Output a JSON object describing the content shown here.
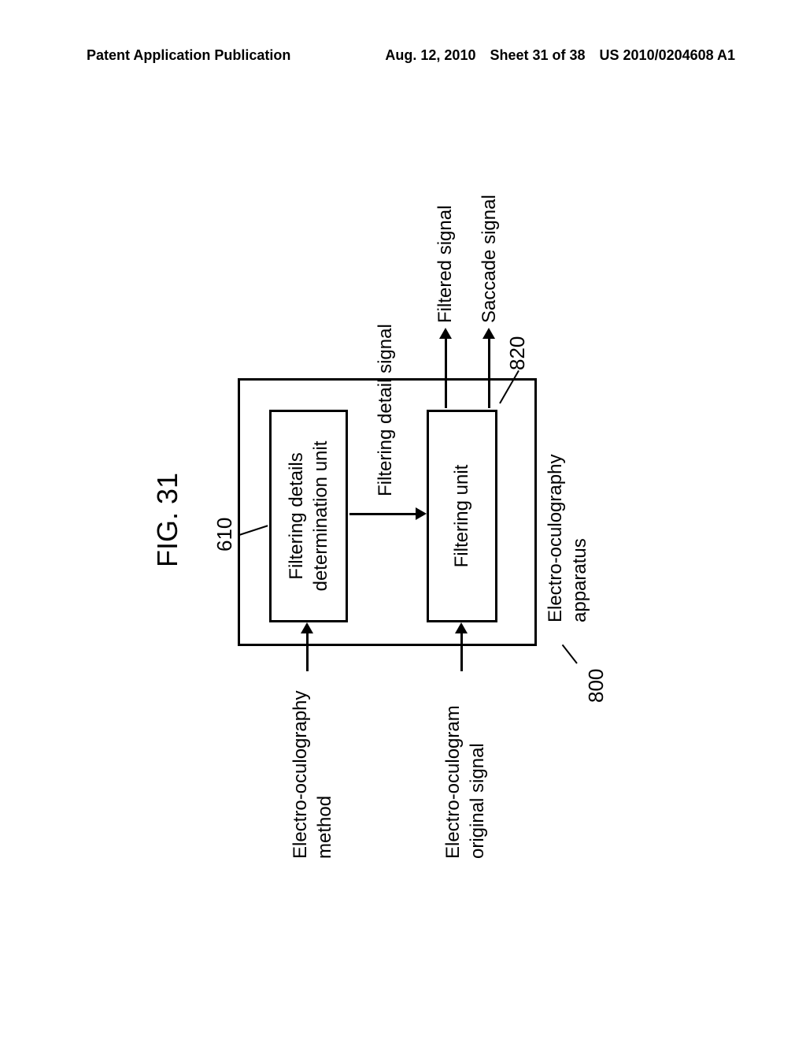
{
  "header": {
    "left": "Patent Application Publication",
    "date": "Aug. 12, 2010",
    "sheet": "Sheet 31 of 38",
    "pubno": "US 2010/0204608 A1"
  },
  "figure": {
    "title": "FIG. 31",
    "refs": {
      "r610": "610",
      "r820": "820",
      "r800": "800"
    },
    "boxes": {
      "determination": "Filtering details\ndetermination unit",
      "filtering": "Filtering unit"
    },
    "apparatus_label": "Electro-oculography\napparatus",
    "inputs": {
      "method": "Electro-oculography\nmethod",
      "original": "Electro-oculogram\noriginal signal"
    },
    "internal": {
      "filtering_detail": "Filtering detail signal"
    },
    "outputs": {
      "filtered": "Filtered signal",
      "saccade": "Saccade signal"
    }
  },
  "colors": {
    "bg": "#ffffff",
    "line": "#000000"
  }
}
